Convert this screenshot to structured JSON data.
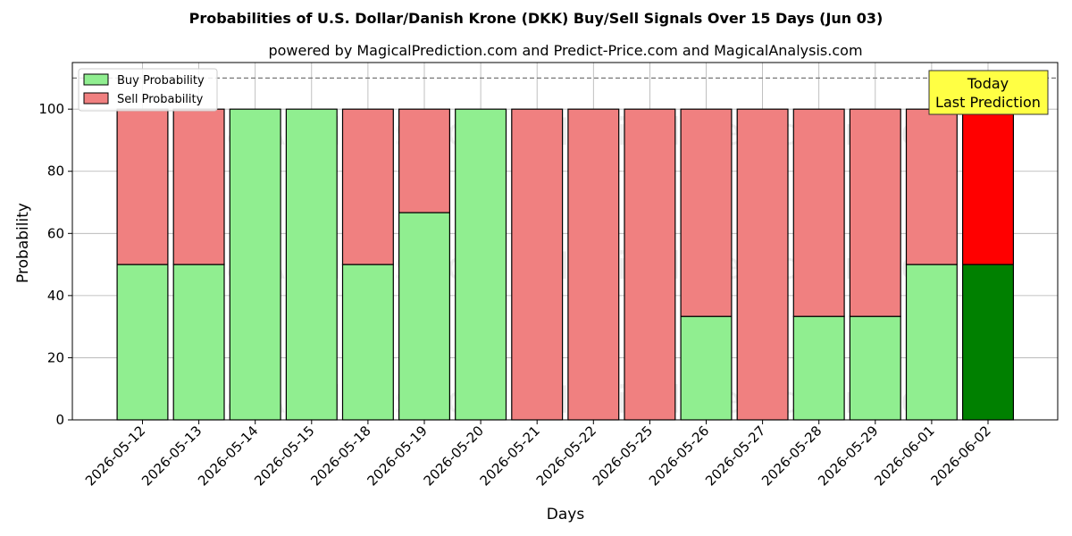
{
  "chart_data": {
    "type": "bar",
    "stacked": true,
    "title": "Probabilities of U.S. Dollar/Danish Krone (DKK) Buy/Sell Signals Over 15 Days (Jun 03)",
    "subtitle": "powered by MagicalPrediction.com and Predict-Price.com and MagicalAnalysis.com",
    "xlabel": "Days",
    "ylabel": "Probability",
    "ylim": [
      0,
      115
    ],
    "yticks": [
      0,
      20,
      40,
      60,
      80,
      100
    ],
    "reference_line": 110,
    "grid": true,
    "legend_position": "top-left",
    "categories": [
      "2026-05-12",
      "2026-05-13",
      "2026-05-14",
      "2026-05-15",
      "2026-05-18",
      "2026-05-19",
      "2026-05-20",
      "2026-05-21",
      "2026-05-22",
      "2026-05-25",
      "2026-05-26",
      "2026-05-27",
      "2026-05-28",
      "2026-05-29",
      "2026-06-01",
      "2026-06-02"
    ],
    "series": [
      {
        "name": "Buy Probability",
        "color": "#90ee90",
        "highlight_color": "#008000",
        "values": [
          50,
          50,
          100,
          100,
          50,
          66.7,
          100,
          0,
          0,
          0,
          33.3,
          0,
          33.3,
          33.3,
          50,
          50
        ]
      },
      {
        "name": "Sell Probability",
        "color": "#f08080",
        "highlight_color": "#ff0000",
        "values": [
          50,
          50,
          0,
          0,
          50,
          33.3,
          0,
          100,
          100,
          100,
          66.7,
          100,
          66.7,
          66.7,
          50,
          50
        ]
      }
    ],
    "highlight_index": 15,
    "annotation": {
      "line1": "Today",
      "line2": "Last Prediction",
      "color": "#ffff44"
    },
    "watermarks": [
      "MagicalAnalysis.com",
      "MagicalPrediction.com"
    ]
  }
}
